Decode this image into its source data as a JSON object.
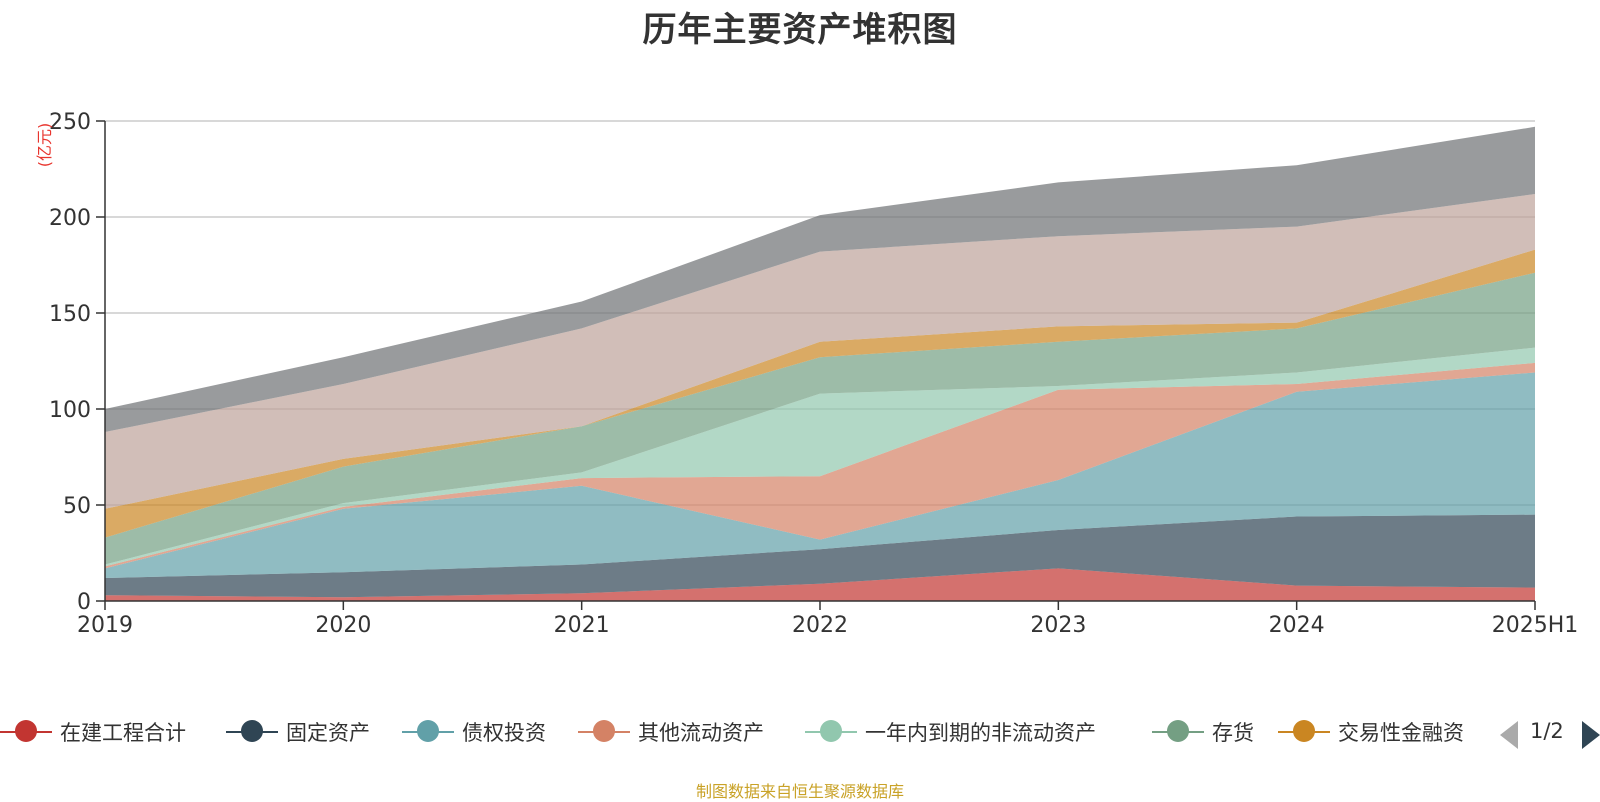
{
  "chart_data": {
    "type": "area",
    "stacked": true,
    "title": "历年主要资产堆积图",
    "unit_label": "(亿元)",
    "categories": [
      "2019",
      "2020",
      "2021",
      "2022",
      "2023",
      "2024",
      "2025H1"
    ],
    "ylim": [
      0,
      250
    ],
    "yticks": [
      0,
      50,
      100,
      150,
      200,
      250
    ],
    "grid": true,
    "legend_position": "bottom",
    "series": [
      {
        "name": "在建工程合计",
        "color": "#c23531",
        "values": [
          3,
          2,
          4,
          9,
          17,
          8,
          7
        ]
      },
      {
        "name": "固定资产",
        "color": "#2f4554",
        "values": [
          9,
          13,
          15,
          18,
          20,
          36,
          38
        ]
      },
      {
        "name": "债权投资",
        "color": "#61a0a8",
        "values": [
          5,
          33,
          41,
          5,
          26,
          65,
          74
        ]
      },
      {
        "name": "其他流动资产",
        "color": "#d48265",
        "values": [
          1,
          1,
          4,
          33,
          47,
          4,
          5
        ]
      },
      {
        "name": "一年内到期的非流动资产",
        "color": "#91c7ae",
        "values": [
          1,
          2,
          3,
          43,
          2,
          6,
          8
        ]
      },
      {
        "name": "存货",
        "color": "#749f83",
        "values": [
          14,
          19,
          24,
          19,
          23,
          23,
          39
        ]
      },
      {
        "name": "交易性金融资",
        "color": "#ca8622",
        "values": [
          15,
          4,
          0,
          8,
          8,
          3,
          12
        ]
      },
      {
        "name": "",
        "color": "#bda29a",
        "values": [
          40,
          39,
          51,
          47,
          47,
          50,
          29
        ]
      },
      {
        "name": "",
        "color": "#6e7074",
        "values": [
          12,
          14,
          14,
          19,
          28,
          32,
          35
        ]
      }
    ]
  },
  "legend_pager": "1/2",
  "source_note": "制图数据来自恒生聚源数据库"
}
